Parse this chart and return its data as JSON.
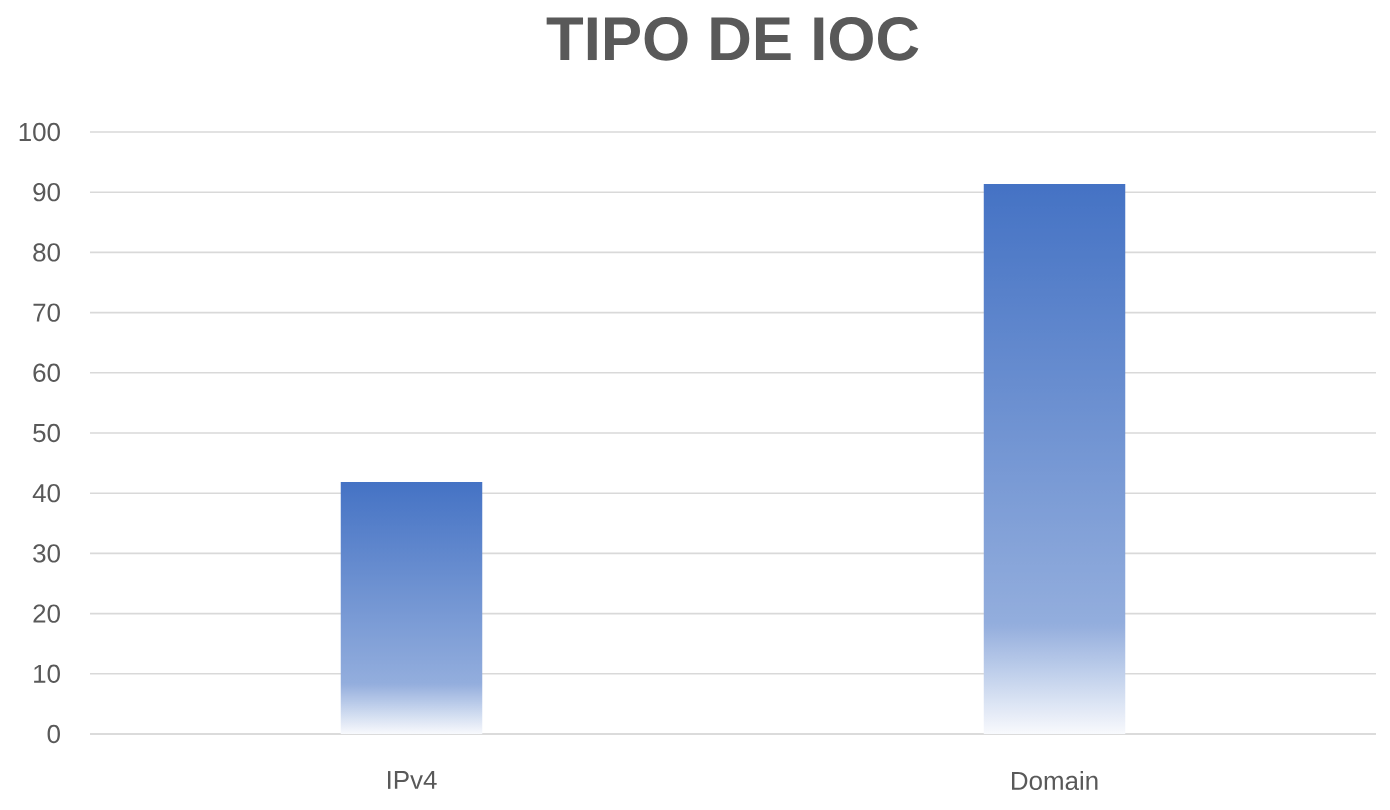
{
  "chart_data": {
    "type": "bar",
    "title": "TIPO DE IOC",
    "categories": [
      "IPv4",
      "Domain"
    ],
    "values": [
      42,
      91.5
    ],
    "color": "#4472c4",
    "ylim": [
      0,
      100
    ],
    "yticks": [
      0,
      10,
      20,
      30,
      40,
      50,
      60,
      70,
      80,
      90,
      100
    ],
    "grid": "y"
  }
}
